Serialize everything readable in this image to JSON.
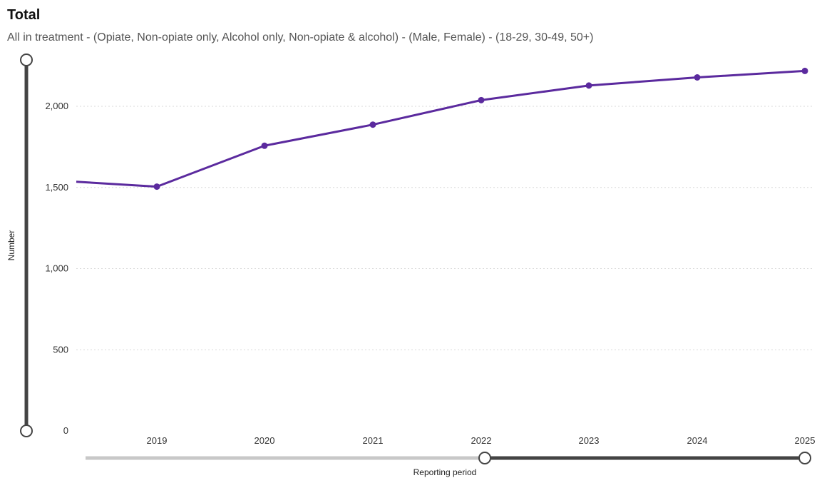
{
  "header": {
    "title": "Total",
    "subtitle": "All in treatment - (Opiate, Non-opiate only, Alcohol only, Non-opiate & alcohol) - (Male, Female) - (18-29, 30-49, 50+)"
  },
  "colors": {
    "series": "#5b2a9e",
    "grid": "#d8d8d8",
    "slider_track": "#c8c8c8",
    "slider_active": "#444444"
  },
  "chart_data": {
    "type": "line",
    "xlabel": "Reporting period",
    "ylabel": "Number",
    "ylim": [
      0,
      2300
    ],
    "yticks": [
      0,
      500,
      1000,
      1500,
      2000
    ],
    "ytick_labels": [
      "0",
      "500",
      "1,000",
      "1,500",
      "2,000"
    ],
    "x_tick_labels": [
      "2019",
      "2020",
      "2021",
      "2022",
      "2023",
      "2024",
      "2025"
    ],
    "grid": true,
    "series": [
      {
        "x": [
          "2018",
          "2019",
          "2020",
          "2021",
          "2022",
          "2023",
          "2024",
          "2025"
        ],
        "values": [
          1535,
          1505,
          1757,
          1887,
          2038,
          2128,
          2178,
          2218
        ]
      }
    ],
    "range_slider": {
      "from": "2022",
      "to": "2025"
    }
  }
}
